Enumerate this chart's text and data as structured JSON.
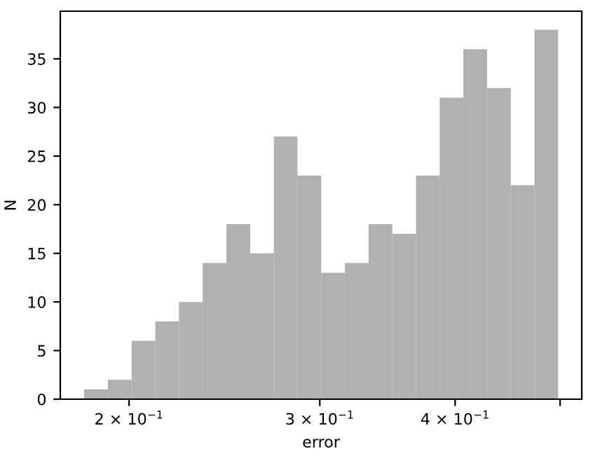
{
  "chart_data": {
    "type": "histogram",
    "xlabel": "error",
    "ylabel": "N",
    "log": "x",
    "color": "#b0b0b0",
    "bins": [
      0.1818,
      0.1912,
      0.2011,
      0.2115,
      0.2224,
      0.2339,
      0.246,
      0.2587,
      0.2721,
      0.2861,
      0.3009,
      0.3165,
      0.3328,
      0.35,
      0.3681,
      0.3871,
      0.4071,
      0.4281,
      0.4503,
      0.4735,
      0.498
    ],
    "values": [
      1,
      2,
      6,
      8,
      10,
      14,
      18,
      15,
      27,
      23,
      13,
      14,
      18,
      17,
      23,
      31,
      36,
      32,
      22,
      38
    ],
    "xlim": [
      0.1728,
      0.5236
    ],
    "xticks": [
      {
        "value": 0.2,
        "label": "2 × 10$^{−1}$"
      },
      {
        "value": 0.3,
        "label": "3 × 10$^{−1}$"
      },
      {
        "value": 0.4,
        "label": "4 × 10$^{−1}$"
      },
      {
        "value": 0.5,
        "label": null
      }
    ],
    "ylim": [
      0,
      39.9
    ],
    "yticks": [
      0,
      5,
      10,
      15,
      20,
      25,
      30,
      35
    ],
    "grid": false
  }
}
